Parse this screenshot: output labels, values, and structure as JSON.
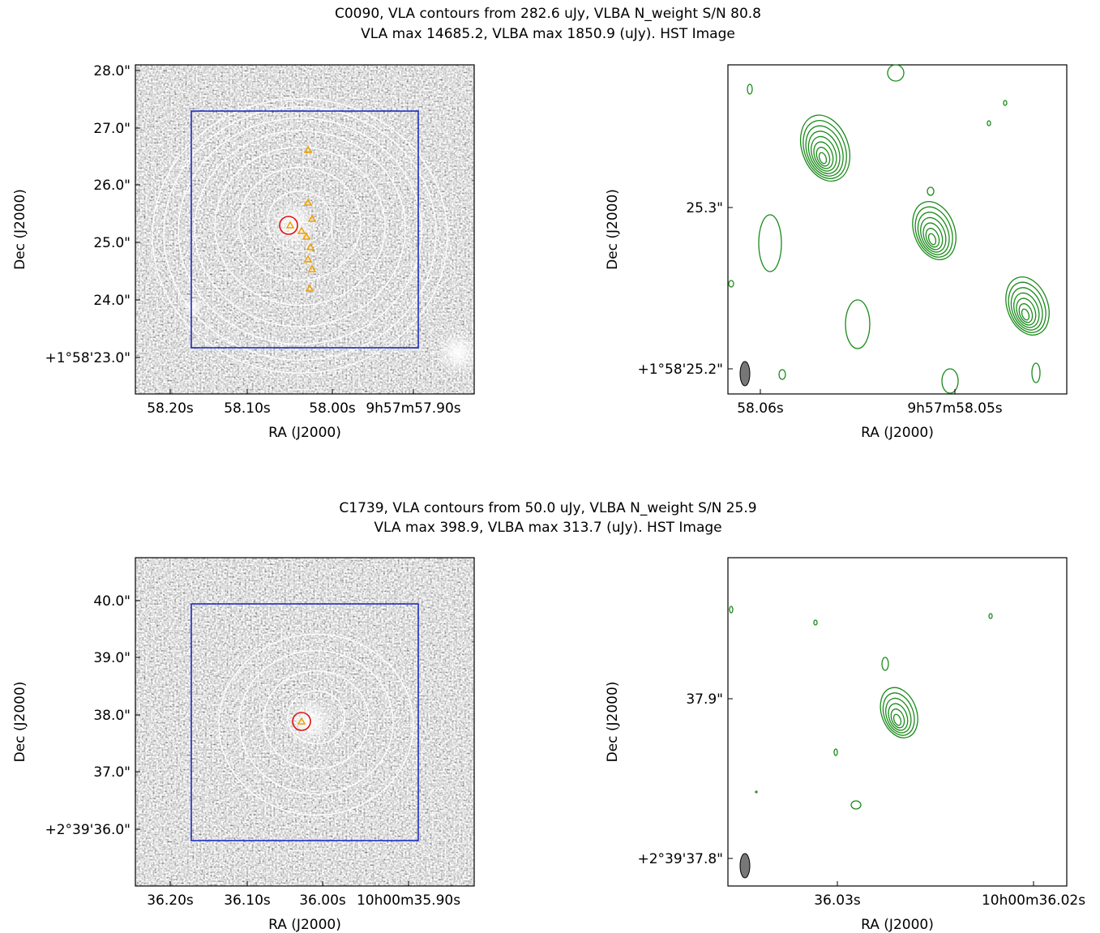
{
  "panels": [
    {
      "title": [
        "C0090, VLA contours from 282.6 uJy, VLBA N_weight S/N 80.8",
        "VLA max 14685.2, VLBA max 1850.9 (uJy). HST Image"
      ],
      "left": {
        "yticks": [
          "28.0\"",
          "27.0\"",
          "26.0\"",
          "25.0\"",
          "24.0\"",
          "+1°58'23.0\""
        ],
        "xticks": [
          "58.20s",
          "58.10s",
          "58.00s",
          "9h57m57.90s"
        ],
        "ylabel": "Dec (J2000)",
        "xlabel": "RA (J2000)"
      },
      "right": {
        "yticks": [
          "25.3\"",
          "+1°58'25.2\""
        ],
        "xticks": [
          "58.06s",
          "9h57m58.05s"
        ],
        "ylabel": "Dec (J2000)",
        "xlabel": "RA (J2000)"
      }
    },
    {
      "title": [
        "C1739, VLA contours from 50.0 uJy, VLBA N_weight S/N 25.9",
        "VLA max 398.9, VLBA max 313.7 (uJy). HST Image"
      ],
      "left": {
        "yticks": [
          "40.0\"",
          "39.0\"",
          "38.0\"",
          "37.0\"",
          "+2°39'36.0\""
        ],
        "xticks": [
          "36.20s",
          "36.10s",
          "36.00s",
          "10h00m35.90s"
        ],
        "ylabel": "Dec (J2000)",
        "xlabel": "RA (J2000)"
      },
      "right": {
        "yticks": [
          "37.9\"",
          "+2°39'37.8\""
        ],
        "xticks": [
          "36.03s",
          "10h00m36.02s"
        ],
        "ylabel": "Dec (J2000)",
        "xlabel": "RA (J2000)"
      }
    }
  ]
}
